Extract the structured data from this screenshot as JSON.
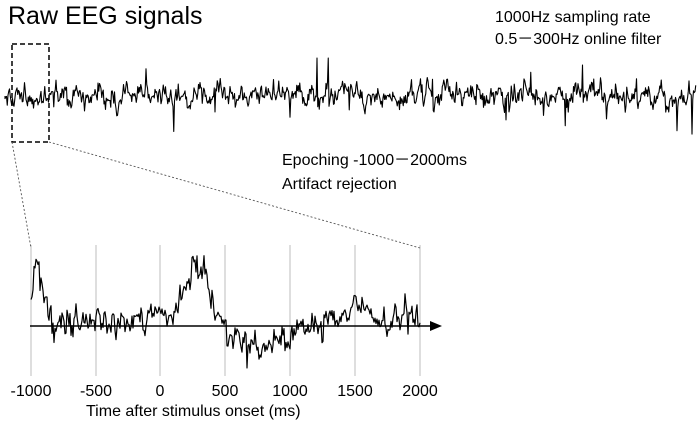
{
  "title": "Raw EEG signals",
  "acquisition": {
    "sampling_rate": "1000Hz sampling rate",
    "online_filter": "0.5－300Hz online filter"
  },
  "processing": {
    "epoching": "Epoching -1000－2000ms",
    "artifact": "Artifact rejection"
  },
  "epoch_plot": {
    "xlabel": "Time after stimulus onset (ms)",
    "ticks": [
      "-1000",
      "-500",
      "0",
      "500",
      "1000",
      "1500",
      "2000"
    ]
  },
  "colors": {
    "trace": "#000000",
    "gridline": "#c8c8c8",
    "zoom_box": "#000000"
  }
}
